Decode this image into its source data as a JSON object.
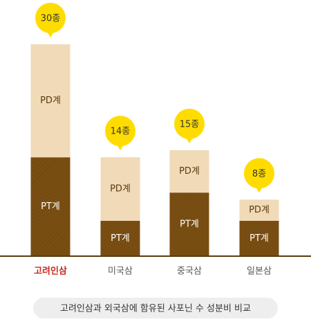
{
  "chart_data": {
    "type": "stacked_bar",
    "categories": [
      "고려인삼",
      "미국삼",
      "중국삼",
      "일본삼"
    ],
    "series": [
      {
        "name": "PT계",
        "color": "#7b4f12",
        "values": [
          14,
          5,
          9,
          5
        ]
      },
      {
        "name": "PD계",
        "color": "#f1dab7",
        "values": [
          16,
          9,
          6,
          3
        ]
      }
    ],
    "totals": {
      "values": [
        30,
        14,
        15,
        8
      ],
      "value_labels": [
        "30종",
        "14종",
        "15종",
        "8종"
      ],
      "color": "#ffdc00"
    },
    "ylim": [
      0,
      30
    ],
    "highlight": {
      "index": 0,
      "color": "#c8281e"
    },
    "caption": "고려인삼과 외국삼에 함유된 사포닌 수 성분비 비교"
  }
}
